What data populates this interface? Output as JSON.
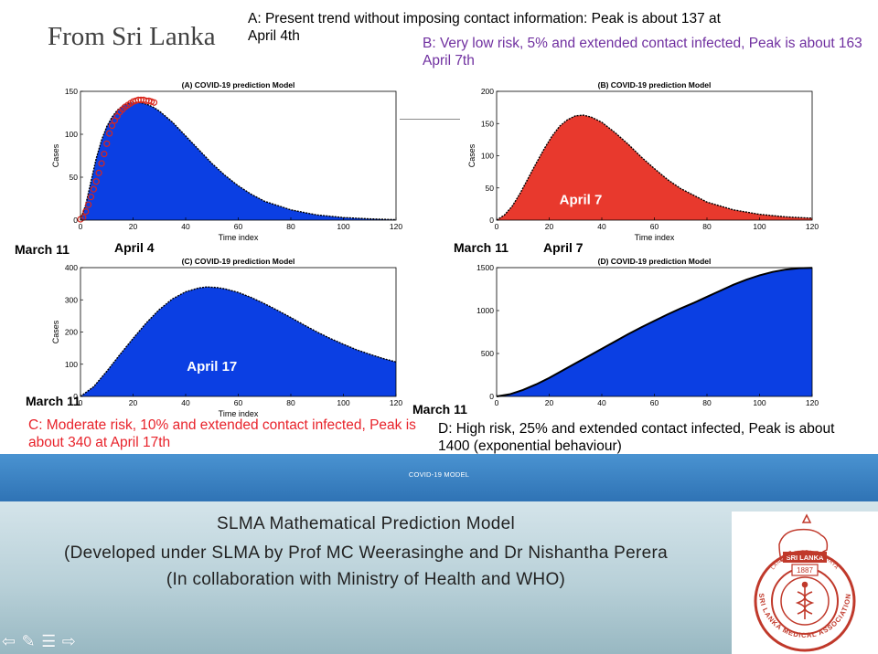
{
  "slide": {
    "title": "From Sri Lanka",
    "notes": {
      "a": "A: Present trend without imposing contact information: Peak is about 137 at April 4th",
      "b": "B: Very low risk, 5% and extended contact infected, Peak is about 163 April 7th",
      "c": "C: Moderate risk, 10% and extended contact infected, Peak is about 340 at April 17th",
      "d": "D: High risk, 25% and extended contact infected, Peak is about 1400 (exponential behaviour)"
    },
    "date_labels": {
      "a_start": "March 11",
      "a_peak": "April 4",
      "b_start": "March 11",
      "b_peak": "April 7",
      "c_start": "March 11",
      "d_start": "March 11"
    },
    "colors": {
      "blue_fill": "#0b3fe3",
      "red_fill": "#e8392d",
      "purple_text": "#7030a0",
      "red_text": "#e8232b",
      "observed_marker": "#d9261c"
    }
  },
  "footer": {
    "band_label": "COVID-19 MODEL",
    "credits": [
      "SLMA Mathematical Prediction Model",
      "(Developed under SLMA by Prof  MC Weerasinghe and Dr Nishantha Perera",
      "(In collaboration with Ministry of Health and WHO)"
    ]
  },
  "logo": {
    "top_text": "SRI LANKA",
    "year": "1887",
    "ring_text": "SRI LANKA MEDICAL ASSOCIATION",
    "ring_text_top": "LANKADIPASSA SUKHAYA"
  },
  "nav_icons": [
    "arrow-left-icon",
    "pen-icon",
    "menu-icon",
    "arrow-right-icon"
  ],
  "chart_data": [
    {
      "id": "A",
      "type": "area",
      "title": "(A) COVID-19 prediction Model",
      "xlabel": "Time index",
      "ylabel": "Cases",
      "xlim": [
        0,
        120
      ],
      "ylim": [
        0,
        150
      ],
      "xticks": [
        0,
        20,
        40,
        60,
        80,
        100,
        120
      ],
      "yticks": [
        0,
        50,
        100,
        150
      ],
      "fill_color": "#0b3fe3",
      "series": [
        {
          "name": "",
          "x": [
            0,
            2,
            4,
            6,
            8,
            10,
            12,
            14,
            16,
            18,
            20,
            22,
            24,
            26,
            28,
            30,
            35,
            40,
            45,
            50,
            55,
            60,
            65,
            70,
            80,
            90,
            100,
            110,
            120
          ],
          "y": [
            0,
            18,
            45,
            72,
            93,
            109,
            120,
            128,
            133,
            136,
            137,
            137,
            136,
            134,
            131,
            127,
            114,
            98,
            82,
            66,
            52,
            40,
            30,
            22,
            12,
            6,
            3,
            1.5,
            0.5
          ]
        },
        {
          "name": "",
          "marker": "circle",
          "x": [
            0,
            1,
            2,
            3,
            4,
            5,
            6,
            7,
            8,
            9,
            10,
            11,
            12,
            13,
            14,
            15,
            16,
            17,
            18,
            19,
            20,
            21,
            22,
            23,
            24,
            25,
            26,
            27,
            28
          ],
          "y": [
            1,
            3,
            10,
            18,
            27,
            36,
            45,
            55,
            66,
            77,
            89,
            101,
            110,
            116,
            121,
            126,
            129,
            132,
            134,
            136,
            138,
            139,
            140,
            140,
            140,
            139,
            139,
            138,
            137
          ]
        }
      ]
    },
    {
      "id": "B",
      "type": "area",
      "title": "(B) COVID-19 prediction Model",
      "xlabel": "Time index",
      "ylabel": "Cases",
      "xlim": [
        0,
        120
      ],
      "ylim": [
        0,
        200
      ],
      "xticks": [
        0,
        20,
        40,
        60,
        80,
        100,
        120
      ],
      "yticks": [
        0,
        50,
        100,
        150,
        200
      ],
      "fill_color": "#e8392d",
      "annotation": "April 7",
      "series": [
        {
          "name": "",
          "x": [
            0,
            3,
            6,
            9,
            12,
            15,
            18,
            21,
            24,
            27,
            30,
            33,
            36,
            40,
            45,
            50,
            55,
            60,
            65,
            70,
            80,
            90,
            100,
            110,
            120
          ],
          "y": [
            0,
            8,
            22,
            42,
            65,
            88,
            110,
            130,
            146,
            156,
            162,
            163,
            160,
            152,
            136,
            118,
            98,
            80,
            63,
            49,
            28,
            16,
            9,
            5,
            3
          ]
        }
      ]
    },
    {
      "id": "C",
      "type": "area",
      "title": "(C) COVID-19 prediction Model",
      "xlabel": "Time index",
      "ylabel": "Cases",
      "xlim": [
        0,
        120
      ],
      "ylim": [
        0,
        400
      ],
      "xticks": [
        0,
        20,
        40,
        60,
        80,
        100,
        120
      ],
      "yticks": [
        0,
        100,
        200,
        300,
        400
      ],
      "fill_color": "#0b3fe3",
      "annotation": "April 17",
      "series": [
        {
          "name": "",
          "x": [
            0,
            5,
            10,
            15,
            20,
            25,
            30,
            35,
            40,
            45,
            48,
            52,
            55,
            60,
            65,
            70,
            75,
            80,
            85,
            90,
            95,
            100,
            105,
            110,
            115,
            120
          ],
          "y": [
            0,
            30,
            78,
            130,
            180,
            228,
            270,
            303,
            325,
            337,
            340,
            338,
            334,
            323,
            307,
            288,
            267,
            245,
            222,
            200,
            180,
            162,
            145,
            131,
            118,
            107
          ]
        }
      ]
    },
    {
      "id": "D",
      "type": "area",
      "title": "(D) COVID-19 prediction Model",
      "xlabel": "",
      "ylabel": "",
      "xlim": [
        0,
        120
      ],
      "ylim": [
        0,
        1500
      ],
      "xticks": [
        0,
        20,
        40,
        60,
        80,
        100,
        120
      ],
      "yticks": [
        0,
        500,
        1000,
        1500
      ],
      "fill_color": "#0b3fe3",
      "series": [
        {
          "name": "",
          "x": [
            0,
            5,
            10,
            15,
            20,
            25,
            30,
            35,
            40,
            45,
            50,
            55,
            60,
            65,
            70,
            75,
            80,
            85,
            90,
            95,
            100,
            105,
            110,
            115,
            120
          ],
          "y": [
            0,
            25,
            75,
            140,
            215,
            300,
            385,
            470,
            555,
            640,
            725,
            805,
            880,
            955,
            1025,
            1090,
            1160,
            1230,
            1300,
            1360,
            1410,
            1450,
            1478,
            1493,
            1497
          ]
        }
      ]
    }
  ]
}
